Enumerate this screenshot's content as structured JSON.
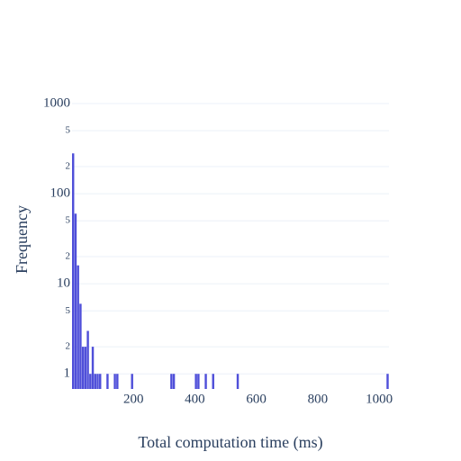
{
  "chart_data": {
    "type": "histogram",
    "xlabel": "Total computation time (ms)",
    "ylabel": "Frequency",
    "color": "#4f4fd9",
    "log_y": true,
    "grid": true,
    "bins": [
      0,
      8,
      16,
      24,
      32,
      40,
      48,
      56,
      64,
      72,
      80,
      88,
      96,
      104,
      112,
      120,
      128,
      136,
      144,
      152,
      160,
      168,
      176,
      184,
      192,
      200,
      208,
      216,
      224,
      232,
      240,
      248,
      256,
      264,
      272,
      280,
      288,
      296,
      304,
      312,
      320,
      328,
      336,
      344,
      352,
      360,
      368,
      376,
      384,
      392,
      400,
      408,
      416,
      424,
      432,
      440,
      448,
      456,
      464,
      472,
      480,
      488,
      496,
      504,
      512,
      520,
      528,
      536,
      544,
      552,
      560,
      568,
      576,
      584,
      592,
      600,
      608,
      616,
      624,
      632,
      640,
      648,
      656,
      664,
      672,
      680,
      688,
      696,
      704,
      712,
      720,
      728,
      736,
      744,
      752,
      760,
      768,
      776,
      784,
      792,
      800,
      808,
      816,
      824,
      832,
      840,
      848,
      856,
      864,
      872,
      880,
      888,
      896,
      904,
      912,
      920,
      928,
      936,
      944,
      952,
      960,
      968,
      976,
      984,
      992,
      1000,
      1008,
      1016,
      1024,
      1032
    ],
    "values": [
      280,
      60,
      16,
      6,
      2,
      2,
      3,
      1,
      2,
      1,
      1,
      1,
      0,
      0,
      1,
      0,
      0,
      1,
      1,
      0,
      0,
      0,
      0,
      0,
      1,
      0,
      0,
      0,
      0,
      0,
      0,
      0,
      0,
      0,
      0,
      0,
      0,
      0,
      0,
      0,
      1,
      1,
      0,
      0,
      0,
      0,
      0,
      0,
      0,
      0,
      1,
      1,
      0,
      0,
      1,
      0,
      0,
      1,
      0,
      0,
      0,
      0,
      0,
      0,
      0,
      0,
      0,
      1,
      0,
      0,
      0,
      0,
      0,
      0,
      0,
      0,
      0,
      0,
      0,
      0,
      0,
      0,
      0,
      0,
      0,
      0,
      0,
      0,
      0,
      0,
      0,
      0,
      0,
      0,
      0,
      0,
      0,
      0,
      0,
      0,
      0,
      0,
      0,
      0,
      0,
      0,
      0,
      0,
      0,
      0,
      0,
      0,
      0,
      0,
      0,
      0,
      0,
      0,
      0,
      0,
      0,
      0,
      0,
      0,
      0,
      0,
      0,
      0,
      1
    ],
    "xlim": [
      0,
      1032
    ],
    "xticks": [
      200,
      400,
      600,
      800,
      1000
    ],
    "ylim": [
      0.68,
      1000
    ],
    "yticks": [
      1,
      {
        "value": 2,
        "label": "2"
      },
      {
        "value": 5,
        "label": "5"
      },
      10,
      {
        "value": 20,
        "label": "2"
      },
      {
        "value": 50,
        "label": "5"
      },
      100,
      {
        "value": 200,
        "label": "2"
      },
      {
        "value": 500,
        "label": "5"
      },
      1000
    ]
  }
}
